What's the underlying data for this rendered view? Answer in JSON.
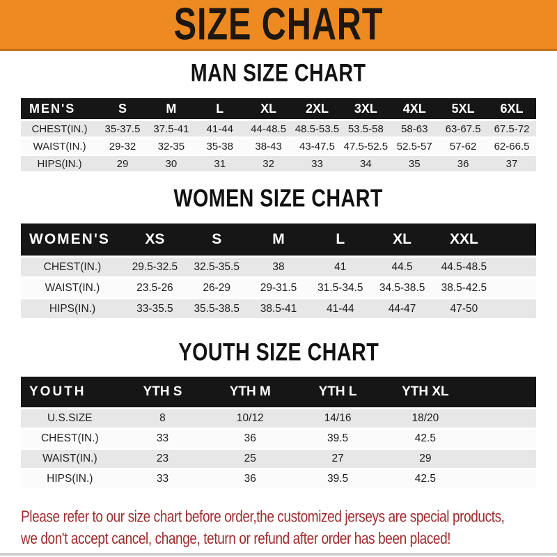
{
  "banner": {
    "title": "SIZE CHART"
  },
  "chart_data": [
    {
      "type": "table",
      "title": "MAN SIZE CHART",
      "corner_label": "MEN'S",
      "columns": [
        "S",
        "M",
        "L",
        "XL",
        "2XL",
        "3XL",
        "4XL",
        "5XL",
        "6XL"
      ],
      "rows": [
        {
          "label": "CHEST(IN.)",
          "values": [
            "35-37.5",
            "37.5-41",
            "41-44",
            "44-48.5",
            "48.5-53.5",
            "53.5-58",
            "58-63",
            "63-67.5",
            "67.5-72"
          ]
        },
        {
          "label": "WAIST(IN.)",
          "values": [
            "29-32",
            "32-35",
            "35-38",
            "38-43",
            "43-47.5",
            "47.5-52.5",
            "52.5-57",
            "57-62",
            "62-66.5"
          ]
        },
        {
          "label": "HIPS(IN.)",
          "values": [
            "29",
            "30",
            "31",
            "32",
            "33",
            "34",
            "35",
            "36",
            "37"
          ]
        }
      ]
    },
    {
      "type": "table",
      "title": "WOMEN SIZE CHART",
      "corner_label": "WOMEN'S",
      "columns": [
        "XS",
        "S",
        "M",
        "L",
        "XL",
        "XXL"
      ],
      "rows": [
        {
          "label": "CHEST(IN.)",
          "values": [
            "29.5-32.5",
            "32.5-35.5",
            "38",
            "41",
            "44.5",
            "44.5-48.5"
          ]
        },
        {
          "label": "WAIST(IN.)",
          "values": [
            "23.5-26",
            "26-29",
            "29-31.5",
            "31.5-34.5",
            "34.5-38.5",
            "38.5-42.5"
          ]
        },
        {
          "label": "HIPS(IN.)",
          "values": [
            "33-35.5",
            "35.5-38.5",
            "38.5-41",
            "41-44",
            "44-47",
            "47-50"
          ]
        }
      ]
    },
    {
      "type": "table",
      "title": "YOUTH SIZE CHART",
      "corner_label": "YOUTH",
      "columns": [
        "YTH S",
        "YTH M",
        "YTH L",
        "YTH XL"
      ],
      "rows": [
        {
          "label": "U.S.SIZE",
          "values": [
            "8",
            "10/12",
            "14/16",
            "18/20"
          ]
        },
        {
          "label": "CHEST(IN.)",
          "values": [
            "33",
            "36",
            "39.5",
            "42.5"
          ]
        },
        {
          "label": "WAIST(IN.)",
          "values": [
            "23",
            "25",
            "27",
            "29"
          ]
        },
        {
          "label": "HIPS(IN.)",
          "values": [
            "33",
            "36",
            "39.5",
            "42.5"
          ]
        }
      ]
    }
  ],
  "footer": {
    "line1": "Please refer to our size chart before order,the customized jerseys are special products,",
    "line2": "we don't accept cancel, change, teturn or refund after order has been placed!"
  },
  "colors": {
    "banner_orange": "#ED8A22",
    "banner_border": "#BF6F16",
    "header_black": "#161616",
    "row_gray": "#E7E7E7",
    "row_white": "#FBFBFB",
    "note_red": "#9D2B2C"
  }
}
